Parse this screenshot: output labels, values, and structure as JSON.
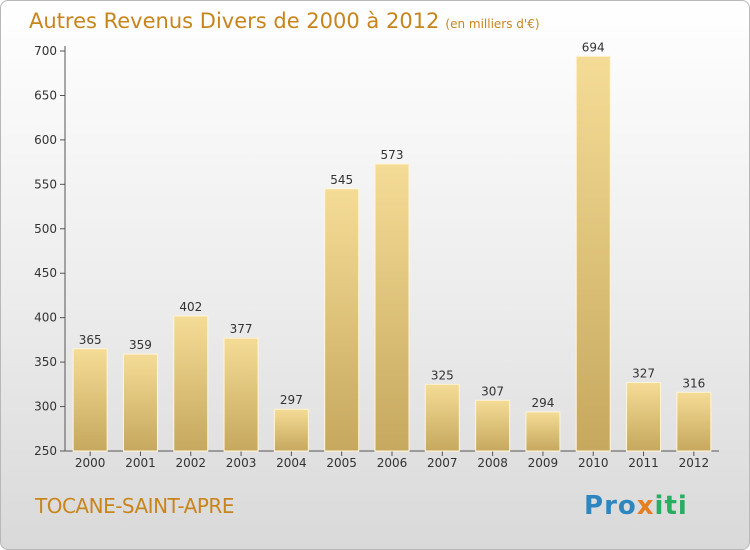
{
  "header": {
    "title": "Autres Revenus Divers de 2000 à 2012",
    "unit": "(en milliers d'€)"
  },
  "footer": {
    "commune": "TOCANE-SAINT-APRE",
    "logo": "Proxiti",
    "logo_letters": [
      {
        "ch": "P",
        "color": "#2e86c1"
      },
      {
        "ch": "r",
        "color": "#2e86c1"
      },
      {
        "ch": "o",
        "color": "#2e86c1"
      },
      {
        "ch": "x",
        "color": "#e67e22"
      },
      {
        "ch": "i",
        "color": "#27ae60"
      },
      {
        "ch": "t",
        "color": "#27ae60"
      },
      {
        "ch": "i",
        "color": "#27ae60"
      }
    ]
  },
  "chart_data": {
    "type": "bar",
    "title": "Autres Revenus Divers de 2000 à 2012",
    "xlabel": "",
    "ylabel": "",
    "categories": [
      "2000",
      "2001",
      "2002",
      "2003",
      "2004",
      "2005",
      "2006",
      "2007",
      "2008",
      "2009",
      "2010",
      "2011",
      "2012"
    ],
    "values": [
      365,
      359,
      402,
      377,
      297,
      545,
      573,
      325,
      307,
      294,
      694,
      327,
      316
    ],
    "ylim": [
      250,
      700
    ],
    "yticks": [
      250,
      300,
      350,
      400,
      450,
      500,
      550,
      600,
      650,
      700
    ],
    "grid": false,
    "bar_color": "#e8c97a"
  }
}
